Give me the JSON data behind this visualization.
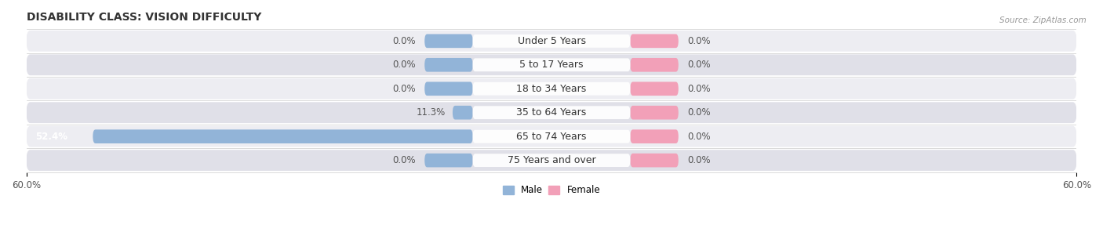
{
  "title": "DISABILITY CLASS: VISION DIFFICULTY",
  "source": "Source: ZipAtlas.com",
  "categories": [
    "Under 5 Years",
    "5 to 17 Years",
    "18 to 34 Years",
    "35 to 64 Years",
    "65 to 74 Years",
    "75 Years and over"
  ],
  "male_values": [
    0.0,
    0.0,
    0.0,
    11.3,
    52.4,
    0.0
  ],
  "female_values": [
    0.0,
    0.0,
    0.0,
    0.0,
    0.0,
    0.0
  ],
  "male_color": "#92b4d8",
  "female_color": "#f2a0b8",
  "axis_max": 60.0,
  "title_fontsize": 10,
  "label_fontsize": 8.5,
  "category_fontsize": 9,
  "tick_fontsize": 8.5,
  "bar_height": 0.58,
  "stub_size": 5.5,
  "row_bg_even": "#ededf2",
  "row_bg_odd": "#e0e0e8",
  "text_color": "#555555",
  "cat_label_color": "#333333",
  "male_label_white": true
}
